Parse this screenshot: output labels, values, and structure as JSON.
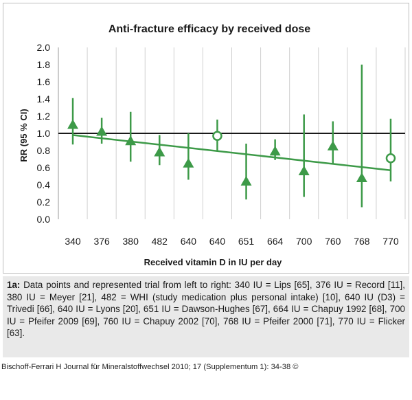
{
  "chart_data": {
    "type": "scatter",
    "title": "Anti-fracture efficacy by received dose",
    "xlabel": "Received vitamin D in IU per day",
    "ylabel": "RR (95 % CI)",
    "ylim": [
      0.0,
      2.0
    ],
    "yticks": [
      "0.0",
      "0.2",
      "0.4",
      "0.6",
      "0.8",
      "1.0",
      "1.2",
      "1.4",
      "1.6",
      "1.8",
      "2.0"
    ],
    "categories": [
      "340",
      "376",
      "380",
      "482",
      "640",
      "640",
      "651",
      "664",
      "700",
      "760",
      "768",
      "770"
    ],
    "points": [
      {
        "label": "340",
        "rr": 1.1,
        "low": 0.87,
        "high": 1.41,
        "marker": "triangle"
      },
      {
        "label": "376",
        "rr": 1.02,
        "low": 0.88,
        "high": 1.18,
        "marker": "triangle"
      },
      {
        "label": "380",
        "rr": 0.91,
        "low": 0.67,
        "high": 1.25,
        "marker": "triangle"
      },
      {
        "label": "482",
        "rr": 0.78,
        "low": 0.63,
        "high": 0.98,
        "marker": "triangle"
      },
      {
        "label": "640",
        "rr": 0.65,
        "low": 0.46,
        "high": 1.0,
        "marker": "triangle"
      },
      {
        "label": "640",
        "rr": 0.97,
        "low": 0.8,
        "high": 1.16,
        "marker": "circle"
      },
      {
        "label": "651",
        "rr": 0.44,
        "low": 0.23,
        "high": 0.88,
        "marker": "triangle"
      },
      {
        "label": "664",
        "rr": 0.79,
        "low": 0.69,
        "high": 0.93,
        "marker": "triangle"
      },
      {
        "label": "700",
        "rr": 0.56,
        "low": 0.26,
        "high": 1.22,
        "marker": "triangle"
      },
      {
        "label": "760",
        "rr": 0.85,
        "low": 0.65,
        "high": 1.14,
        "marker": "triangle"
      },
      {
        "label": "768",
        "rr": 0.48,
        "low": 0.14,
        "high": 1.8,
        "marker": "triangle"
      },
      {
        "label": "770",
        "rr": 0.71,
        "low": 0.44,
        "high": 1.17,
        "marker": "circle"
      }
    ],
    "reference_line": 1.0,
    "trend_line": {
      "start": 0.98,
      "end": 0.57
    },
    "grid": "vertical",
    "colors": {
      "marker": "#3d9a48",
      "reference": "#1a1a1a",
      "grid": "#cfcfcf"
    }
  },
  "caption": {
    "lead": "1a:",
    "text": " Data points and represented trial from left to right: 340 IU = Lips [65], 376 IU = Record [11], 380 IU = Meyer [21], 482 = WHI (study medication plus personal intake) [10], 640 IU (D3) = Trivedi [66], 640 IU = Lyons [20], 651 IU = Dawson-Hughes [67], 664 IU = Chapuy 1992 [68], 700 IU = Pfeifer 2009 [69], 760 IU = Chapuy 2002 [70], 768 IU = Pfeifer 2000 [71], 770 IU = Flicker [63]."
  },
  "citation": "Bischoff-Ferrari H Journal für Mineralstoffwechsel 2010; 17 (Supplementum 1): 34-38 ©"
}
